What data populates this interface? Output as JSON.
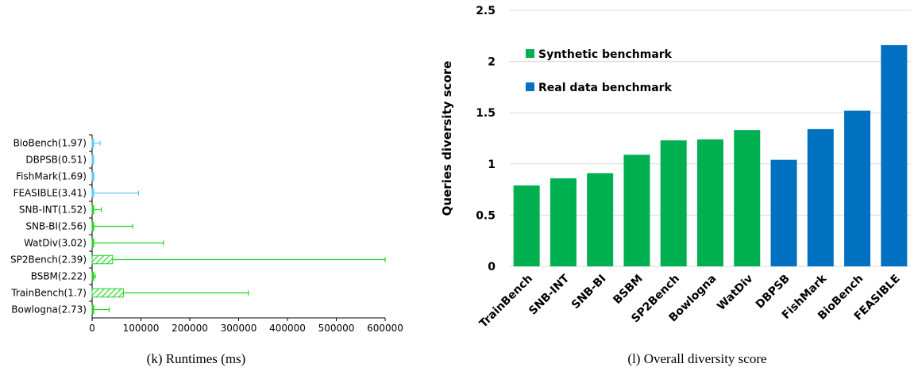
{
  "chart_data": [
    {
      "type": "bar",
      "orientation": "horizontal",
      "caption": "(k) Runtimes (ms)",
      "categories": [
        "BioBench(1.97)",
        "DBPSB(0.51)",
        "FishMark(1.69)",
        "FEASIBLE(3.41)",
        "SNB-INT(1.52)",
        "SNB-BI(2.56)",
        "WatDiv(3.02)",
        "SP2Bench(2.39)",
        "BSBM(2.22)",
        "TrainBench(1.7)",
        "Bowlogna(2.73)"
      ],
      "values": [
        1500,
        300,
        1000,
        2000,
        3000,
        3000,
        2000,
        42000,
        1500,
        64000,
        1000
      ],
      "error_plus": [
        15000,
        1500,
        2500,
        93000,
        16000,
        80000,
        144000,
        558000,
        5000,
        256000,
        34000
      ],
      "groups": [
        "real",
        "real",
        "real",
        "real",
        "synthetic",
        "synthetic",
        "synthetic",
        "synthetic",
        "synthetic",
        "synthetic",
        "synthetic"
      ],
      "colors": {
        "real": "#5bc8f5",
        "synthetic": "#1fd41f"
      },
      "xlim": [
        0,
        600000
      ],
      "xticks": [
        "0",
        "100000",
        "200000",
        "300000",
        "400000",
        "500000",
        "600000"
      ],
      "grid": false
    },
    {
      "type": "bar",
      "caption": "(l) Overall diversity score",
      "ylabel": "Queries diversity score",
      "categories": [
        "TrainBench",
        "SNB-INT",
        "SNB-BI",
        "BSBM",
        "SP2Bench",
        "Bowlogna",
        "WatDiv",
        "DBPSB",
        "FishMark",
        "BioBench",
        "FEASIBLE"
      ],
      "values": [
        0.79,
        0.86,
        0.91,
        1.09,
        1.23,
        1.24,
        1.33,
        1.04,
        1.34,
        1.52,
        2.16
      ],
      "groups": [
        "synthetic",
        "synthetic",
        "synthetic",
        "synthetic",
        "synthetic",
        "synthetic",
        "synthetic",
        "real",
        "real",
        "real",
        "real"
      ],
      "legend": [
        {
          "key": "synthetic",
          "name": "Synthetic benchmark",
          "color": "#00b050"
        },
        {
          "key": "real",
          "name": "Real data benchmark",
          "color": "#0070c0"
        }
      ],
      "legend_position": "top-left",
      "ylim": [
        0,
        2.5
      ],
      "yticks": [
        "0",
        "0.5",
        "1",
        "1.5",
        "2",
        "2.5"
      ],
      "grid": true
    }
  ]
}
